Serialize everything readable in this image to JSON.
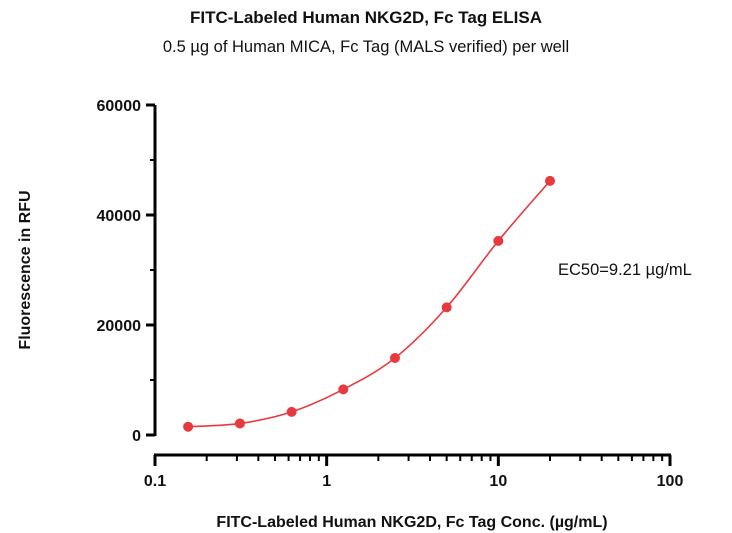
{
  "chart_data": {
    "type": "scatter",
    "title": "FITC-Labeled Human NKG2D, Fc Tag ELISA",
    "subtitle": "0.5 µg of Human MICA, Fc Tag (MALS verified) per well",
    "xlabel": "FITC-Labeled Human NKG2D, Fc Tag Conc. (µg/mL)",
    "ylabel": "Fluorescence in RFU",
    "x_scale": "log",
    "xlim": [
      0.1,
      100
    ],
    "ylim": [
      0,
      60000
    ],
    "x_ticks": [
      0.1,
      1,
      10,
      100
    ],
    "x_tick_labels": [
      "0.1",
      "1",
      "10",
      "100"
    ],
    "y_ticks": [
      0,
      20000,
      40000,
      60000
    ],
    "y_tick_labels": [
      "0",
      "20000",
      "40000",
      "60000"
    ],
    "grid": false,
    "annotation": "EC50=9.21 µg/mL",
    "color": "#e8393f",
    "series": [
      {
        "x": [
          0.156,
          0.3125,
          0.625,
          1.25,
          2.5,
          5,
          10,
          20
        ],
        "y": [
          1500,
          2100,
          4200,
          8300,
          14000,
          23200,
          35300,
          46200
        ]
      }
    ]
  }
}
